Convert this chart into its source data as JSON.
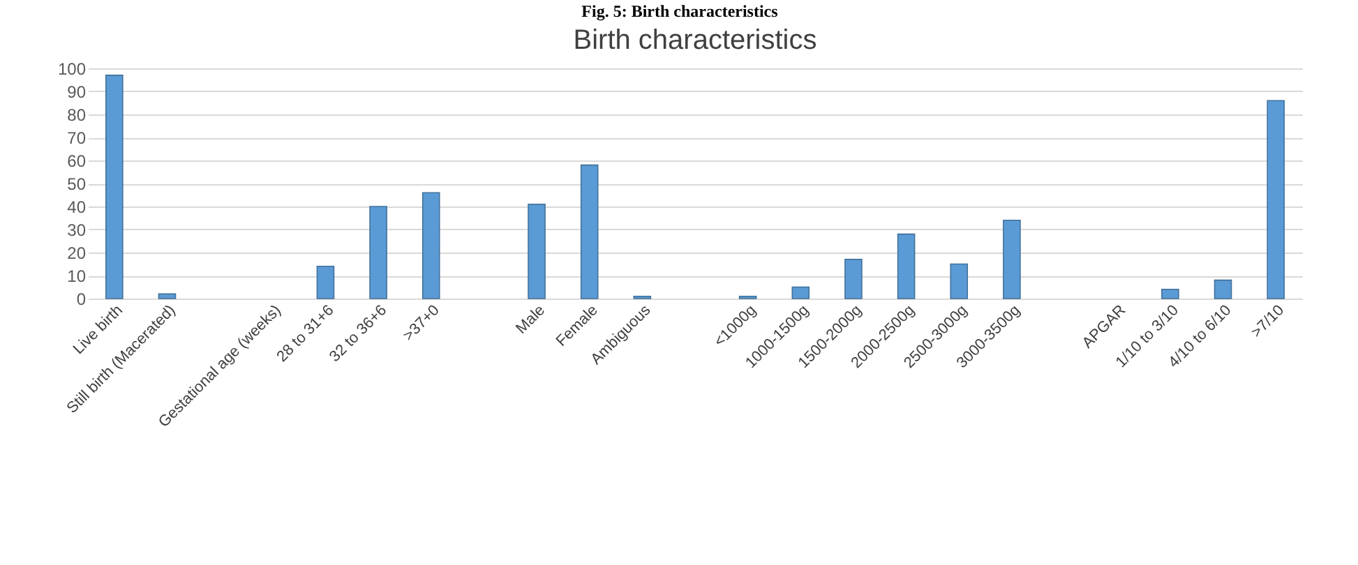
{
  "chart_data": {
    "type": "bar",
    "title": "Birth characteristics",
    "annotations": [
      "Fig. 5: Birth characteristics"
    ],
    "categories": [
      "Live birth",
      "Still birth (Macerated)",
      null,
      "Gestational age (weeks)",
      "28 to 31+6",
      "32 to 36+6",
      ">37+0",
      null,
      "Male",
      "Female",
      "Ambiguous",
      null,
      "<1000g",
      "1000-1500g",
      "1500-2000g",
      "2000-2500g",
      "2500-3000g",
      "3000-3500g",
      null,
      "APGAR",
      "1/10 to 3/10",
      "4/10 to 6/10",
      ">7/10"
    ],
    "values": [
      97,
      2,
      null,
      null,
      14,
      40,
      46,
      null,
      41,
      58,
      1,
      null,
      1,
      5,
      17,
      28,
      15,
      34,
      null,
      null,
      4,
      8,
      86
    ],
    "color": "#5b9bd5",
    "ylim": [
      0,
      100
    ],
    "yticks": [
      0,
      10,
      20,
      30,
      40,
      50,
      60,
      70,
      80,
      90,
      100
    ],
    "grid": "y"
  }
}
